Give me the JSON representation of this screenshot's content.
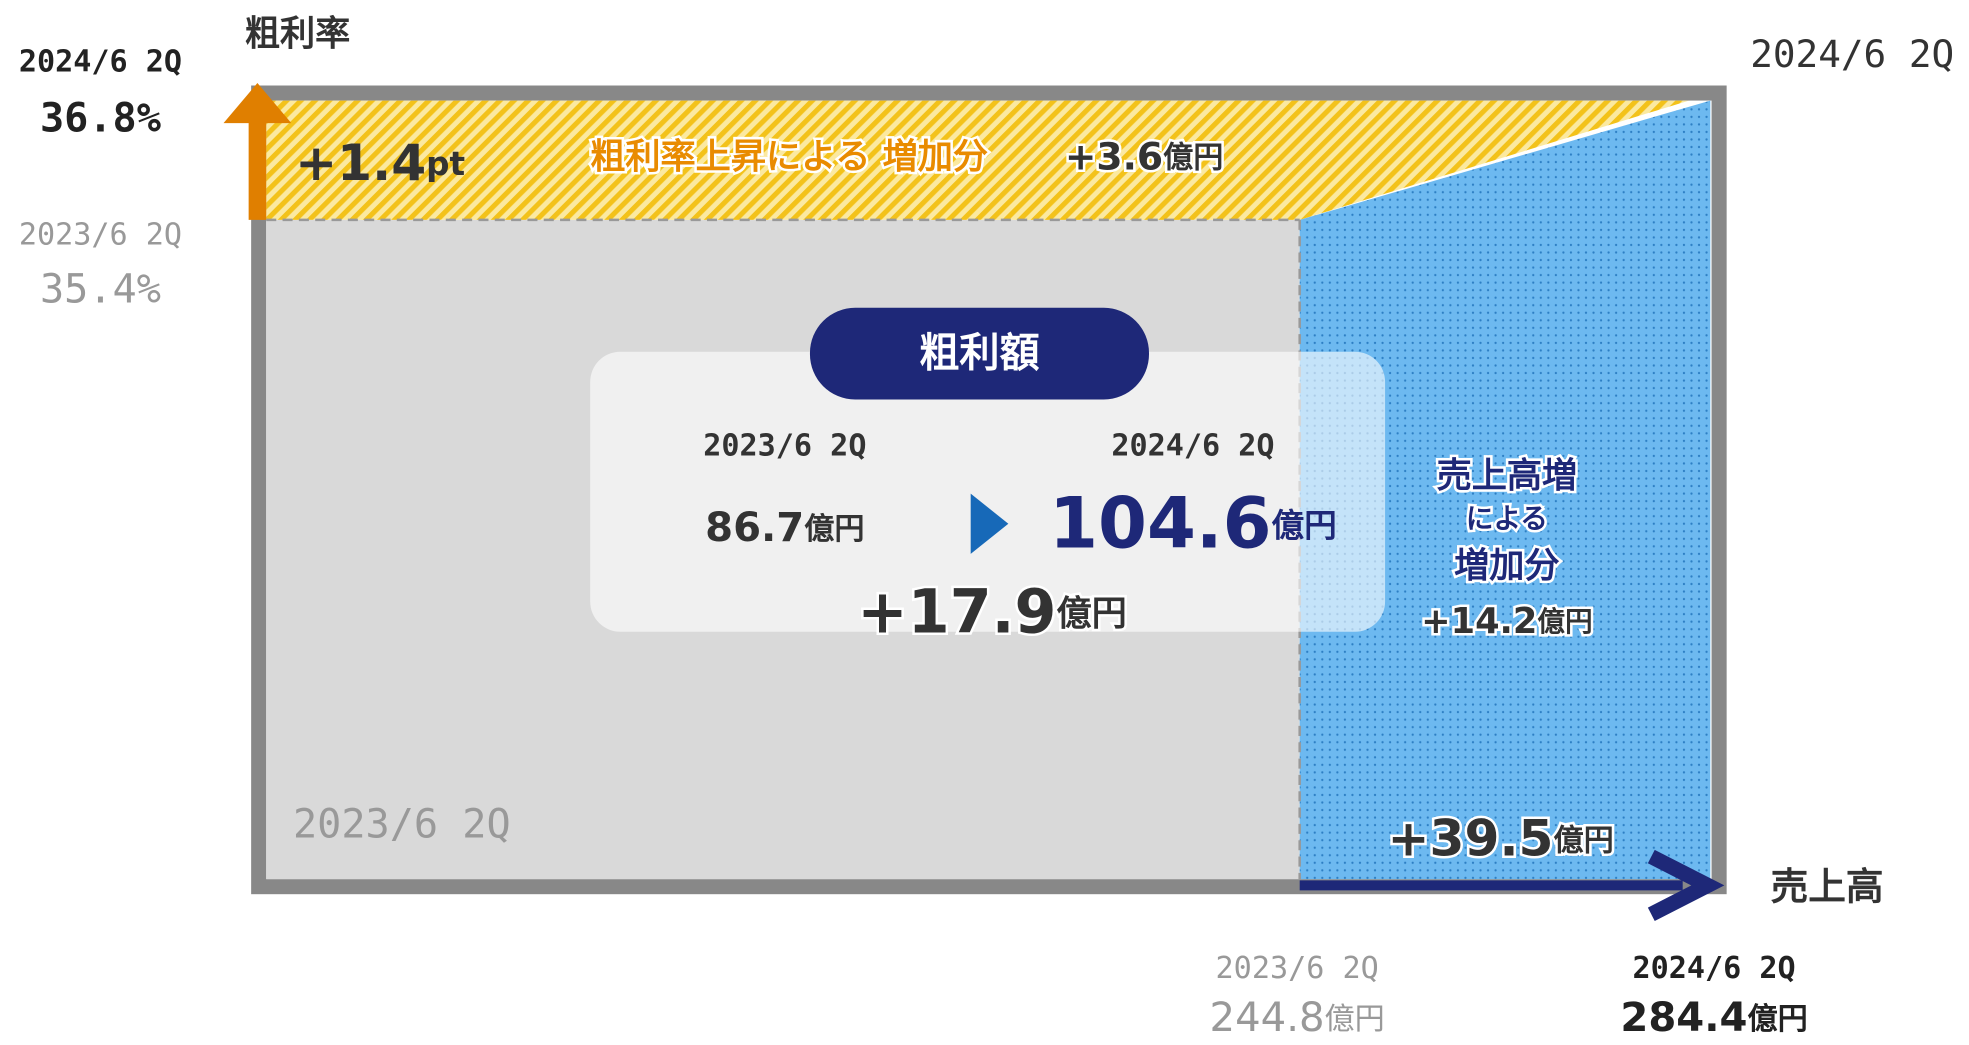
{
  "axes": {
    "y_label": "粗利率",
    "x_label": "売上高"
  },
  "margin_rate": {
    "current": {
      "period": "2024/6 2Q",
      "value": "36.8%"
    },
    "previous": {
      "period": "2023/6 2Q",
      "value": "35.4%"
    },
    "change": {
      "value": "+1.4",
      "unit": "pt"
    },
    "effect": {
      "label": "粗利率上昇による 増加分",
      "value": "+3.6",
      "unit": "億円"
    }
  },
  "sales": {
    "current": {
      "period": "2024/6 2Q",
      "value": "284.4",
      "unit": "億円"
    },
    "previous": {
      "period": "2023/6 2Q",
      "value": "244.8",
      "unit": "億円"
    },
    "change": {
      "value": "+39.5",
      "unit": "億円"
    },
    "effect": {
      "label_1": "売上高増",
      "label_2": "による",
      "label_3": "増加分",
      "value": "+14.2",
      "unit": "億円"
    }
  },
  "corner_period": "2024/6 2Q",
  "base_period": "2023/6 2Q",
  "gross_profit": {
    "title": "粗利額",
    "previous": {
      "period": "2023/6 2Q",
      "value": "86.7",
      "unit": "億円"
    },
    "current": {
      "period": "2024/6 2Q",
      "value": "104.6",
      "unit": "億円"
    },
    "change": {
      "value": "+17.9",
      "unit": "億円"
    }
  }
}
